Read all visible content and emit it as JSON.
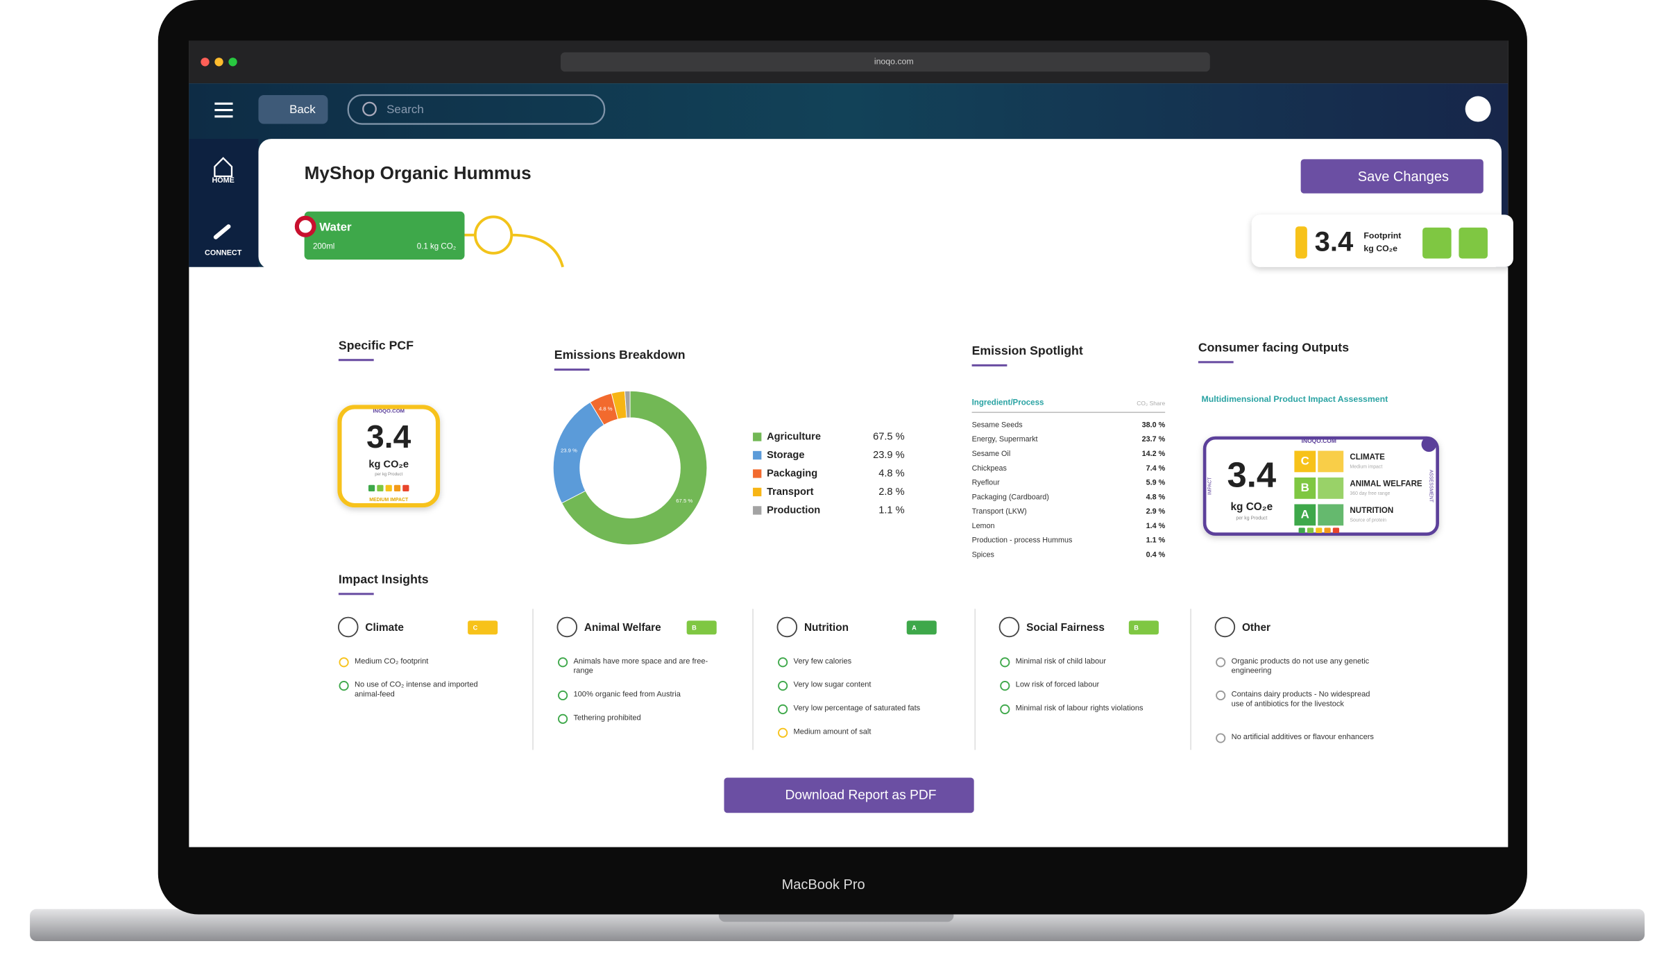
{
  "browser": {
    "url": "inoqo.com"
  },
  "nav": {
    "back": "Back",
    "search": "Search",
    "home": "HOME",
    "connect": "CONNECT"
  },
  "product": {
    "title": "MyShop Organic Hummus",
    "save": "Save Changes"
  },
  "node": {
    "name": "Water",
    "amount": "200ml",
    "co2": "0.1 kg CO₂"
  },
  "footprint": {
    "value": "3.4",
    "label": "Footprint",
    "unit": "kg CO₂e"
  },
  "specific_pcf": {
    "title": "Specific PCF",
    "brand": "INOQO.COM",
    "value": "3.4",
    "unit": "kg CO₂e",
    "sub": "per kg Product",
    "impact": "MEDIUM IMPACT"
  },
  "emissions_breakdown": {
    "type": "pie",
    "title": "Emissions Breakdown",
    "categories": [
      "Agriculture",
      "Storage",
      "Packaging",
      "Transport",
      "Production"
    ],
    "values": [
      67.5,
      23.9,
      4.8,
      2.8,
      1.1
    ],
    "value_labels": [
      "67.5 %",
      "23.9 %",
      "4.8 %",
      "2.8 %",
      "1.1 %"
    ],
    "colors": [
      "#72b855",
      "#5b9bd9",
      "#f26a2e",
      "#f7b515",
      "#a3a3a3"
    ]
  },
  "spotlight": {
    "title": "Emission Spotlight",
    "header": [
      "Ingredient/Process",
      "CO₂ Share"
    ],
    "rows": [
      [
        "Sesame Seeds",
        "38.0 %"
      ],
      [
        "Energy, Supermarkt",
        "23.7 %"
      ],
      [
        "Sesame Oil",
        "14.2 %"
      ],
      [
        "Chickpeas",
        "7.4 %"
      ],
      [
        "Ryeflour",
        "5.9 %"
      ],
      [
        "Packaging (Cardboard)",
        "4.8 %"
      ],
      [
        "Transport (LKW)",
        "2.9 %"
      ],
      [
        "Lemon",
        "1.4 %"
      ],
      [
        "Production - process Hummus",
        "1.1 %"
      ],
      [
        "Spices",
        "0.4 %"
      ]
    ]
  },
  "consumer": {
    "title": "Consumer facing Outputs",
    "subtitle": "Multidimensional Product Impact Assessment",
    "brand": "INOQO.COM",
    "value": "3.4",
    "unit": "kg CO₂e",
    "sub": "per kg Product",
    "side_left": "IMPACT",
    "side_right": "ASSESSMENT",
    "rows": [
      {
        "grade": "C",
        "name": "CLIMATE",
        "sub": "Medium impact"
      },
      {
        "grade": "B",
        "name": "ANIMAL WELFARE",
        "sub": "360 day free range"
      },
      {
        "grade": "A",
        "name": "NUTRITION",
        "sub": "Source of protein"
      }
    ]
  },
  "insights": {
    "title": "Impact Insights",
    "columns": [
      {
        "title": "Climate",
        "grade": "C",
        "items": [
          "Medium CO₂ footprint",
          "No use of CO₂ intense and imported animal-feed"
        ]
      },
      {
        "title": "Animal Welfare",
        "grade": "B",
        "items": [
          "Animals have more space and are free-range",
          "100% organic feed from Austria",
          "Tethering prohibited"
        ]
      },
      {
        "title": "Nutrition",
        "grade": "A",
        "items": [
          "Very few calories",
          "Very low sugar content",
          "Very low percentage of saturated fats",
          "Medium amount of salt"
        ]
      },
      {
        "title": "Social Fairness",
        "grade": "B",
        "items": [
          "Minimal risk of child labour",
          "Low risk of forced labour",
          "Minimal risk of labour rights violations"
        ]
      },
      {
        "title": "Other",
        "items": [
          "Organic products do not use any genetic engineering",
          "Contains dairy products - No widespread use of antibiotics for the livestock",
          "No artificial additives or flavour enhancers"
        ]
      }
    ]
  },
  "download": "Download Report as PDF",
  "device": "MacBook Pro"
}
